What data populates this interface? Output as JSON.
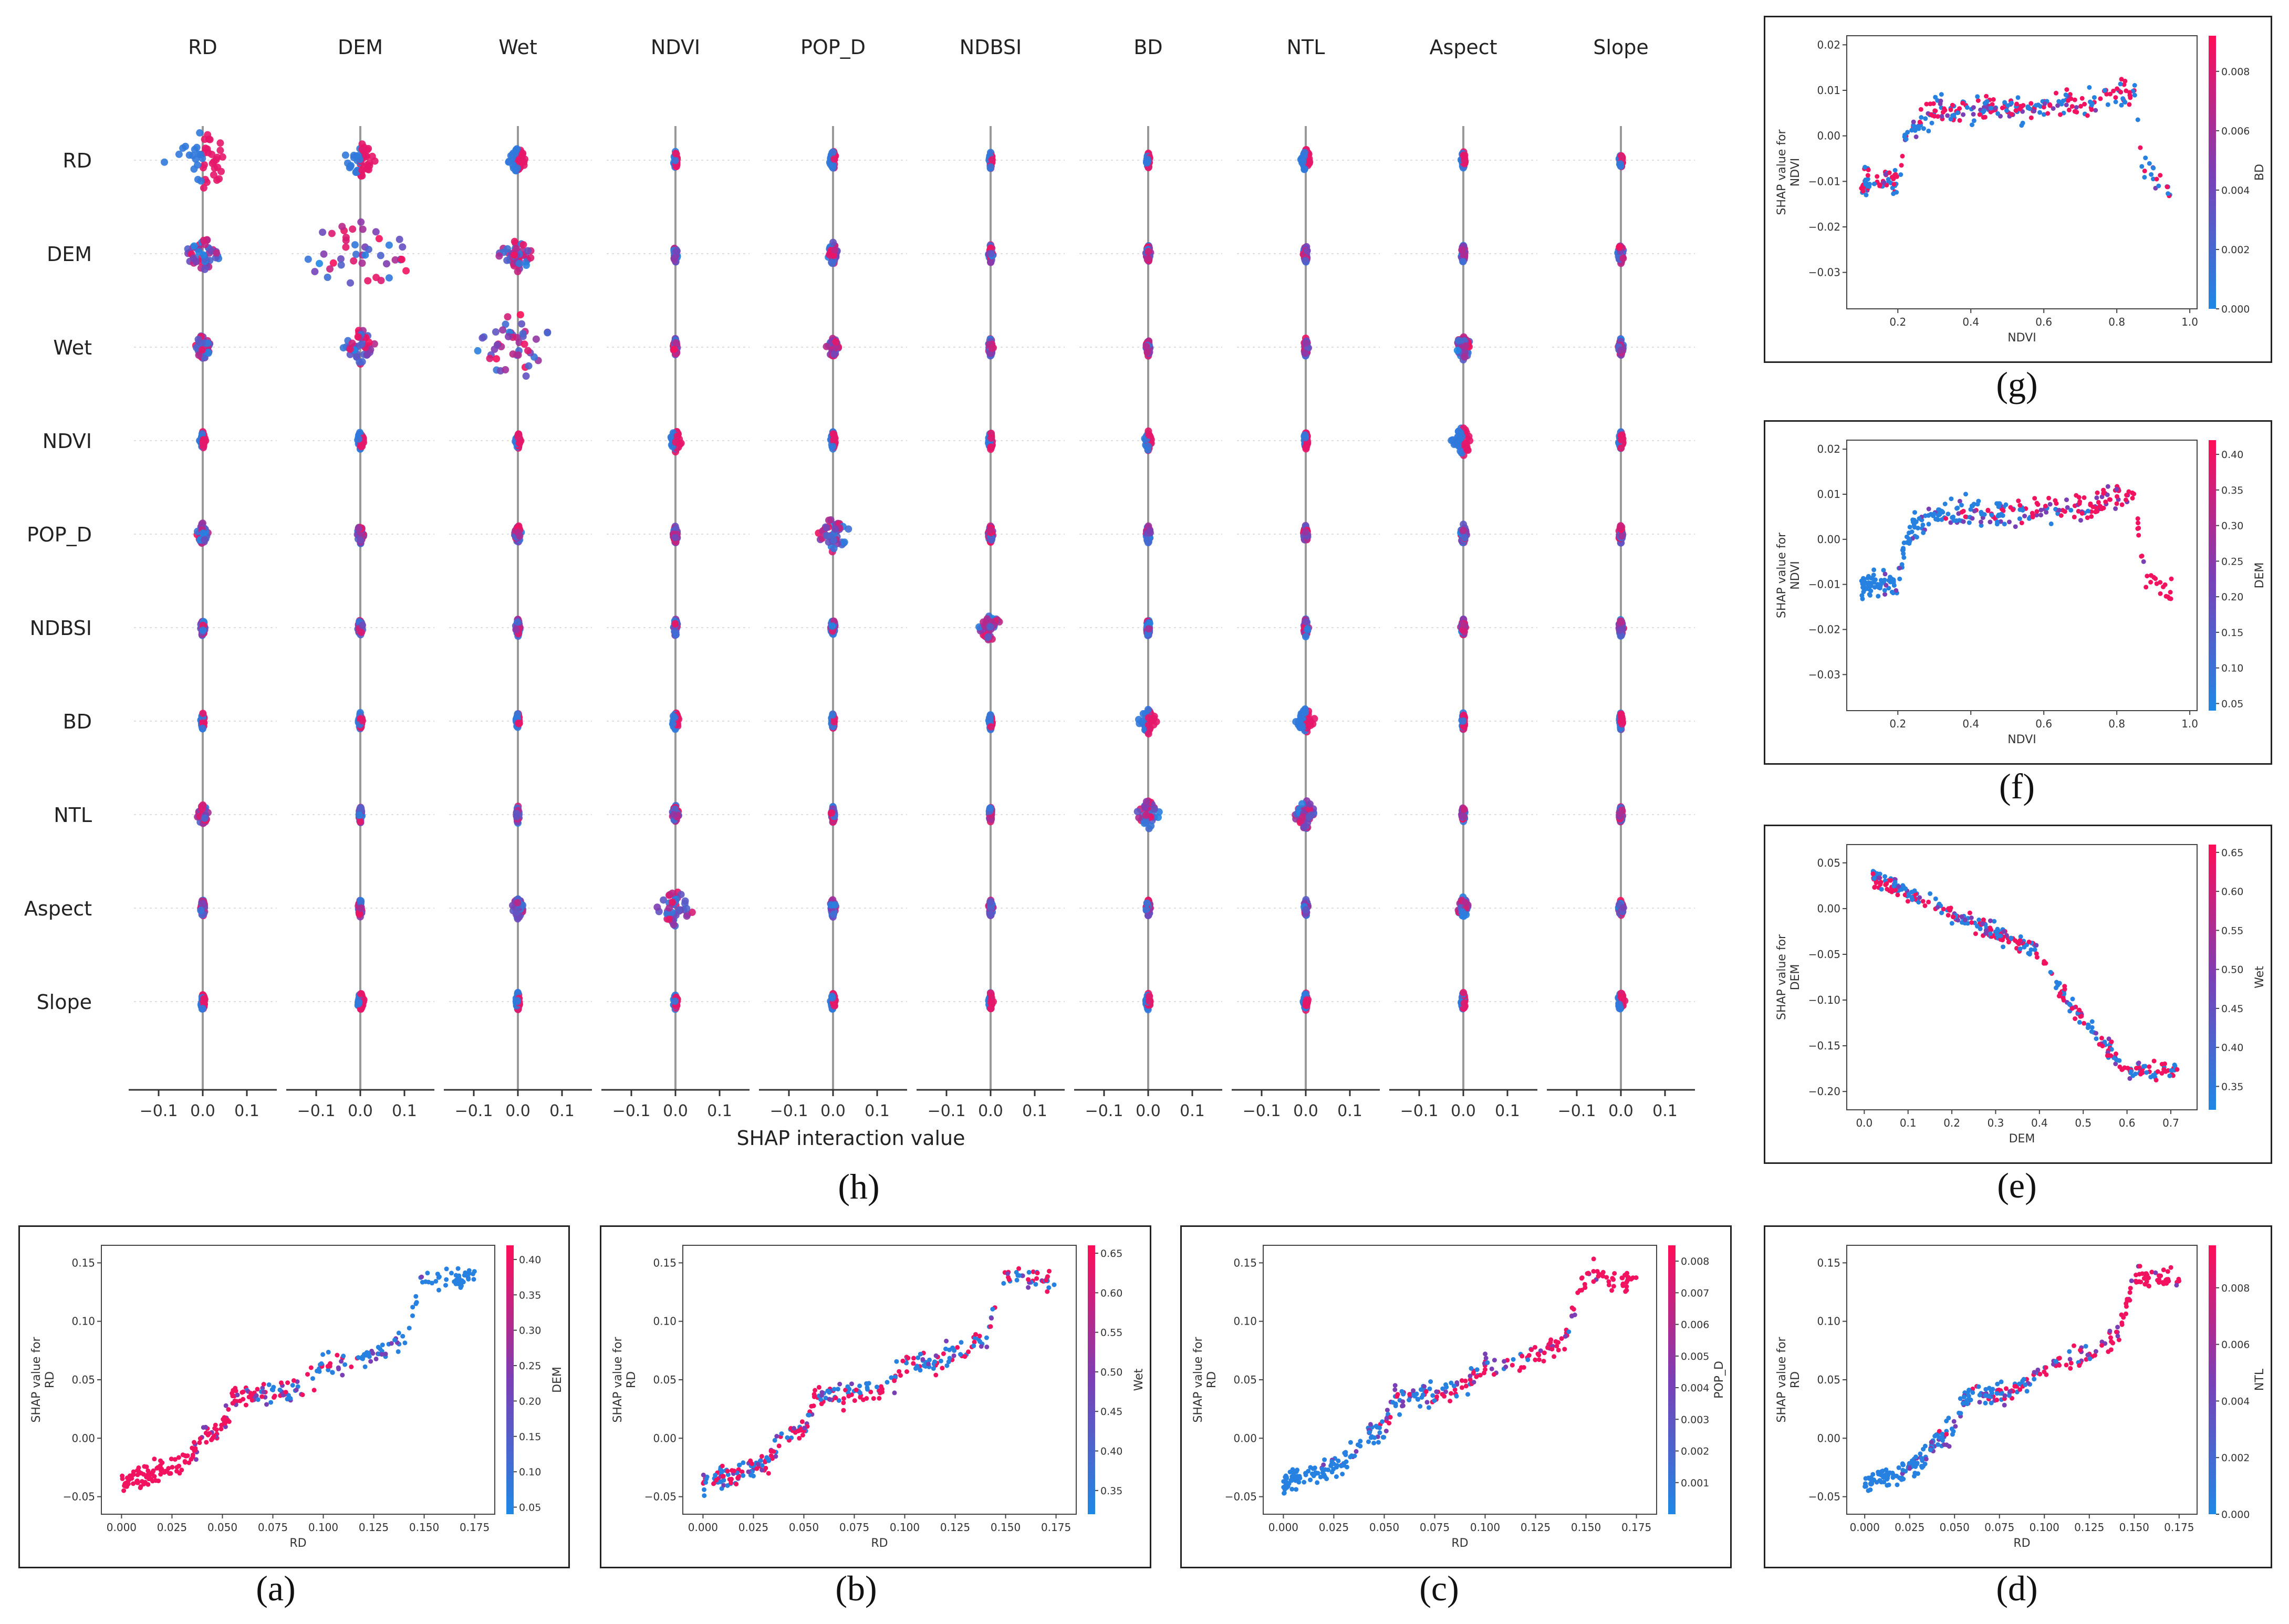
{
  "figure": {
    "panel_labels": [
      "(a)",
      "(b)",
      "(c)",
      "(d)",
      "(e)",
      "(f)",
      "(g)",
      "(h)"
    ]
  },
  "colors": {
    "low": "#1e88e5",
    "high": "#ff0d57",
    "axis": "#333333",
    "grid": "#dddddd"
  },
  "chart_data": [
    {
      "id": "h",
      "type": "scatter",
      "subtype": "shap-interaction-beeswarm-matrix",
      "xlabel": "SHAP interaction value",
      "features": [
        "RD",
        "DEM",
        "Wet",
        "NDVI",
        "POP_D",
        "NDBSI",
        "BD",
        "NTL",
        "Aspect",
        "Slope"
      ],
      "xlim": [
        -0.15,
        0.15
      ],
      "xticks": [
        -0.1,
        0.0,
        0.1
      ],
      "xtick_labels": [
        "−0.1",
        "0.0",
        "0.1"
      ],
      "spread": [
        [
          0.06,
          0.03,
          0.015,
          0.004,
          0.006,
          0.003,
          0.003,
          0.01,
          0.004,
          0.003
        ],
        [
          0.03,
          0.12,
          0.03,
          0.004,
          0.01,
          0.004,
          0.004,
          0.004,
          0.004,
          0.006
        ],
        [
          0.015,
          0.03,
          0.08,
          0.004,
          0.01,
          0.004,
          0.004,
          0.004,
          0.015,
          0.004
        ],
        [
          0.004,
          0.006,
          0.004,
          0.01,
          0.004,
          0.004,
          0.006,
          0.004,
          0.02,
          0.004
        ],
        [
          0.01,
          0.006,
          0.006,
          0.004,
          0.03,
          0.004,
          0.004,
          0.004,
          0.006,
          0.004
        ],
        [
          0.004,
          0.004,
          0.004,
          0.004,
          0.004,
          0.02,
          0.004,
          0.004,
          0.004,
          0.004
        ],
        [
          0.003,
          0.003,
          0.003,
          0.006,
          0.003,
          0.003,
          0.015,
          0.015,
          0.003,
          0.003
        ],
        [
          0.01,
          0.003,
          0.003,
          0.006,
          0.003,
          0.003,
          0.02,
          0.02,
          0.003,
          0.003
        ],
        [
          0.004,
          0.004,
          0.01,
          0.03,
          0.006,
          0.004,
          0.004,
          0.004,
          0.01,
          0.004
        ],
        [
          0.004,
          0.006,
          0.004,
          0.004,
          0.004,
          0.004,
          0.004,
          0.004,
          0.004,
          0.006
        ]
      ]
    },
    {
      "id": "a",
      "type": "scatter",
      "subtype": "shap-dependence",
      "xlabel": "RD",
      "ylabel": "SHAP value for\nRD",
      "color_feature": "DEM",
      "xlim": [
        -0.01,
        0.185
      ],
      "ylim": [
        -0.065,
        0.165
      ],
      "xticks": [
        0.0,
        0.025,
        0.05,
        0.075,
        0.1,
        0.125,
        0.15,
        0.175
      ],
      "xtick_labels": [
        "0.000",
        "0.025",
        "0.050",
        "0.075",
        "0.100",
        "0.125",
        "0.150",
        "0.175"
      ],
      "yticks": [
        -0.05,
        0.0,
        0.05,
        0.1,
        0.15
      ],
      "ytick_labels": [
        "−0.05",
        "0.00",
        "0.05",
        "0.10",
        "0.15"
      ],
      "cbar_ticks": [
        0.05,
        0.1,
        0.15,
        0.2,
        0.25,
        0.3,
        0.35,
        0.4
      ],
      "cbar_labels": [
        "0.05",
        "0.10",
        "0.15",
        "0.20",
        "0.25",
        "0.30",
        "0.35",
        "0.40"
      ],
      "cbar_range": [
        0.04,
        0.42
      ],
      "curve_x": [
        0.0,
        0.02,
        0.033,
        0.04,
        0.05,
        0.055,
        0.075,
        0.09,
        0.1,
        0.12,
        0.14,
        0.15,
        0.17
      ],
      "curve_y": [
        -0.038,
        -0.028,
        -0.018,
        0.0,
        0.008,
        0.035,
        0.038,
        0.045,
        0.062,
        0.068,
        0.085,
        0.14,
        0.135
      ],
      "x_range": [
        0.0,
        0.175
      ],
      "noise": 0.008,
      "color_mode": "low_x_high"
    },
    {
      "id": "b",
      "type": "scatter",
      "subtype": "shap-dependence",
      "xlabel": "RD",
      "ylabel": "SHAP value for\nRD",
      "color_feature": "Wet",
      "xlim": [
        -0.01,
        0.185
      ],
      "ylim": [
        -0.065,
        0.165
      ],
      "xticks": [
        0.0,
        0.025,
        0.05,
        0.075,
        0.1,
        0.125,
        0.15,
        0.175
      ],
      "xtick_labels": [
        "0.000",
        "0.025",
        "0.050",
        "0.075",
        "0.100",
        "0.125",
        "0.150",
        "0.175"
      ],
      "yticks": [
        -0.05,
        0.0,
        0.05,
        0.1,
        0.15
      ],
      "ytick_labels": [
        "−0.05",
        "0.00",
        "0.05",
        "0.10",
        "0.15"
      ],
      "cbar_ticks": [
        0.35,
        0.4,
        0.45,
        0.5,
        0.55,
        0.6,
        0.65
      ],
      "cbar_labels": [
        "0.35",
        "0.40",
        "0.45",
        "0.50",
        "0.55",
        "0.60",
        "0.65"
      ],
      "cbar_range": [
        0.32,
        0.66
      ],
      "curve_x": [
        0.0,
        0.02,
        0.033,
        0.04,
        0.05,
        0.055,
        0.075,
        0.09,
        0.1,
        0.12,
        0.14,
        0.15,
        0.17
      ],
      "curve_y": [
        -0.038,
        -0.028,
        -0.018,
        0.0,
        0.008,
        0.035,
        0.038,
        0.045,
        0.062,
        0.068,
        0.085,
        0.14,
        0.135
      ],
      "x_range": [
        0.0,
        0.175
      ],
      "noise": 0.008,
      "color_mode": "mixed"
    },
    {
      "id": "c",
      "type": "scatter",
      "subtype": "shap-dependence",
      "xlabel": "RD",
      "ylabel": "SHAP value for\nRD",
      "color_feature": "POP_D",
      "xlim": [
        -0.01,
        0.185
      ],
      "ylim": [
        -0.065,
        0.165
      ],
      "xticks": [
        0.0,
        0.025,
        0.05,
        0.075,
        0.1,
        0.125,
        0.15,
        0.175
      ],
      "xtick_labels": [
        "0.000",
        "0.025",
        "0.050",
        "0.075",
        "0.100",
        "0.125",
        "0.150",
        "0.175"
      ],
      "yticks": [
        -0.05,
        0.0,
        0.05,
        0.1,
        0.15
      ],
      "ytick_labels": [
        "−0.05",
        "0.00",
        "0.05",
        "0.10",
        "0.15"
      ],
      "cbar_ticks": [
        0.001,
        0.002,
        0.003,
        0.004,
        0.005,
        0.006,
        0.007,
        0.008
      ],
      "cbar_labels": [
        "0.001",
        "0.002",
        "0.003",
        "0.004",
        "0.005",
        "0.006",
        "0.007",
        "0.008"
      ],
      "cbar_range": [
        0.0,
        0.0085
      ],
      "curve_x": [
        0.0,
        0.02,
        0.033,
        0.04,
        0.05,
        0.055,
        0.075,
        0.09,
        0.1,
        0.12,
        0.14,
        0.15,
        0.17
      ],
      "curve_y": [
        -0.038,
        -0.028,
        -0.018,
        0.0,
        0.008,
        0.035,
        0.038,
        0.045,
        0.062,
        0.068,
        0.085,
        0.14,
        0.135
      ],
      "x_range": [
        0.0,
        0.175
      ],
      "noise": 0.008,
      "color_mode": "high_x_high"
    },
    {
      "id": "d",
      "type": "scatter",
      "subtype": "shap-dependence",
      "xlabel": "RD",
      "ylabel": "SHAP value for\nRD",
      "color_feature": "NTL",
      "xlim": [
        -0.01,
        0.185
      ],
      "ylim": [
        -0.065,
        0.165
      ],
      "xticks": [
        0.0,
        0.025,
        0.05,
        0.075,
        0.1,
        0.125,
        0.15,
        0.175
      ],
      "xtick_labels": [
        "0.000",
        "0.025",
        "0.050",
        "0.075",
        "0.100",
        "0.125",
        "0.150",
        "0.175"
      ],
      "yticks": [
        -0.05,
        0.0,
        0.05,
        0.1,
        0.15
      ],
      "ytick_labels": [
        "−0.05",
        "0.00",
        "0.05",
        "0.10",
        "0.15"
      ],
      "cbar_ticks": [
        0.0,
        0.002,
        0.004,
        0.006,
        0.008
      ],
      "cbar_labels": [
        "0.000",
        "0.002",
        "0.004",
        "0.006",
        "0.008"
      ],
      "cbar_range": [
        0.0,
        0.0095
      ],
      "curve_x": [
        0.0,
        0.02,
        0.033,
        0.04,
        0.05,
        0.055,
        0.075,
        0.09,
        0.1,
        0.12,
        0.14,
        0.15,
        0.17
      ],
      "curve_y": [
        -0.038,
        -0.028,
        -0.018,
        0.0,
        0.008,
        0.035,
        0.038,
        0.045,
        0.062,
        0.068,
        0.085,
        0.14,
        0.135
      ],
      "x_range": [
        0.0,
        0.175
      ],
      "noise": 0.008,
      "color_mode": "high_x_high"
    },
    {
      "id": "e",
      "type": "scatter",
      "subtype": "shap-dependence",
      "xlabel": "DEM",
      "ylabel": "SHAP value for\nDEM",
      "color_feature": "Wet",
      "xlim": [
        -0.04,
        0.76
      ],
      "ylim": [
        -0.22,
        0.07
      ],
      "xticks": [
        0.0,
        0.1,
        0.2,
        0.3,
        0.4,
        0.5,
        0.6,
        0.7
      ],
      "xtick_labels": [
        "0.0",
        "0.1",
        "0.2",
        "0.3",
        "0.4",
        "0.5",
        "0.6",
        "0.7"
      ],
      "yticks": [
        -0.2,
        -0.15,
        -0.1,
        -0.05,
        0.0,
        0.05
      ],
      "ytick_labels": [
        "−0.20",
        "−0.15",
        "−0.10",
        "−0.05",
        "0.00",
        "0.05"
      ],
      "cbar_ticks": [
        0.35,
        0.4,
        0.45,
        0.5,
        0.55,
        0.6,
        0.65
      ],
      "cbar_labels": [
        "0.35",
        "0.40",
        "0.45",
        "0.50",
        "0.55",
        "0.60",
        "0.65"
      ],
      "cbar_range": [
        0.32,
        0.66
      ],
      "curve_x": [
        0.02,
        0.1,
        0.2,
        0.3,
        0.4,
        0.45,
        0.5,
        0.6,
        0.7
      ],
      "curve_y": [
        0.035,
        0.015,
        -0.005,
        -0.025,
        -0.05,
        -0.09,
        -0.12,
        -0.18,
        -0.175
      ],
      "x_range": [
        0.02,
        0.72
      ],
      "noise": 0.008,
      "color_mode": "mixed"
    },
    {
      "id": "f",
      "type": "scatter",
      "subtype": "shap-dependence",
      "xlabel": "NDVI",
      "ylabel": "SHAP value for\nNDVI",
      "color_feature": "DEM",
      "xlim": [
        0.06,
        1.02
      ],
      "ylim": [
        -0.038,
        0.022
      ],
      "xticks": [
        0.2,
        0.4,
        0.6,
        0.8,
        1.0
      ],
      "xtick_labels": [
        "0.2",
        "0.4",
        "0.6",
        "0.8",
        "1.0"
      ],
      "yticks": [
        -0.03,
        -0.02,
        -0.01,
        0.0,
        0.01,
        0.02
      ],
      "ytick_labels": [
        "−0.03",
        "−0.02",
        "−0.01",
        "0.00",
        "0.01",
        "0.02"
      ],
      "cbar_ticks": [
        0.05,
        0.1,
        0.15,
        0.2,
        0.25,
        0.3,
        0.35,
        0.4
      ],
      "cbar_labels": [
        "0.05",
        "0.10",
        "0.15",
        "0.20",
        "0.25",
        "0.30",
        "0.35",
        "0.40"
      ],
      "cbar_range": [
        0.04,
        0.42
      ],
      "curve_x": [
        0.1,
        0.2,
        0.22,
        0.3,
        0.5,
        0.7,
        0.8,
        0.85,
        0.87,
        0.95
      ],
      "curve_y": [
        -0.01,
        -0.01,
        0.0,
        0.006,
        0.006,
        0.007,
        0.009,
        0.01,
        -0.007,
        -0.012
      ],
      "x_range": [
        0.1,
        0.95
      ],
      "noise": 0.0025,
      "color_mode": "high_x_high"
    },
    {
      "id": "g",
      "type": "scatter",
      "subtype": "shap-dependence",
      "xlabel": "NDVI",
      "ylabel": "SHAP value for\nNDVI",
      "color_feature": "BD",
      "xlim": [
        0.06,
        1.02
      ],
      "ylim": [
        -0.038,
        0.022
      ],
      "xticks": [
        0.2,
        0.4,
        0.6,
        0.8,
        1.0
      ],
      "xtick_labels": [
        "0.2",
        "0.4",
        "0.6",
        "0.8",
        "1.0"
      ],
      "yticks": [
        -0.03,
        -0.02,
        -0.01,
        0.0,
        0.01,
        0.02
      ],
      "ytick_labels": [
        "−0.03",
        "−0.02",
        "−0.01",
        "0.00",
        "0.01",
        "0.02"
      ],
      "cbar_ticks": [
        0.0,
        0.002,
        0.004,
        0.006,
        0.008
      ],
      "cbar_labels": [
        "0.000",
        "0.002",
        "0.004",
        "0.006",
        "0.008"
      ],
      "cbar_range": [
        0.0,
        0.0092
      ],
      "curve_x": [
        0.1,
        0.2,
        0.22,
        0.3,
        0.5,
        0.7,
        0.8,
        0.85,
        0.87,
        0.95
      ],
      "curve_y": [
        -0.01,
        -0.01,
        0.0,
        0.006,
        0.006,
        0.007,
        0.009,
        0.01,
        -0.007,
        -0.012
      ],
      "x_range": [
        0.1,
        0.95
      ],
      "noise": 0.0025,
      "color_mode": "mixed"
    }
  ]
}
